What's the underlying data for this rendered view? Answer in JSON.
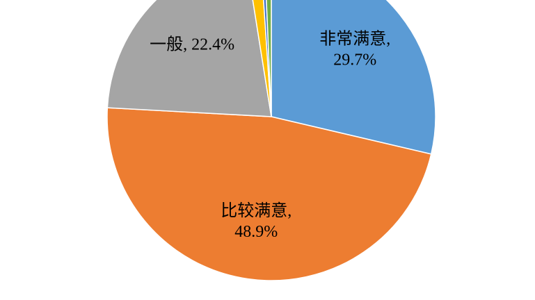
{
  "chart_data": {
    "type": "pie",
    "categories": [
      "非常满意",
      "比较满意",
      "一般",
      null,
      null,
      null
    ],
    "values": [
      29.7,
      48.9,
      22.4,
      1.5,
      0.4,
      0.7
    ],
    "value_labels": [
      "29.7%",
      "48.9%",
      "22.4%",
      null,
      null,
      null
    ],
    "label_separator": ",",
    "colors": [
      "#5b9bd5",
      "#ed7d31",
      "#a5a5a5",
      "#ffc000",
      "#4472c4",
      "#70ad47"
    ]
  }
}
